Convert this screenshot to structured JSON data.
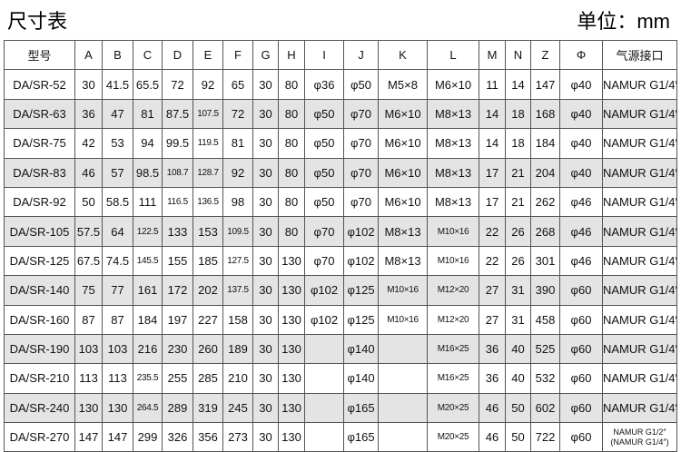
{
  "header": {
    "title": "尺寸表",
    "unit": "单位：mm"
  },
  "table": {
    "header": [
      "型号",
      "A",
      "B",
      "C",
      "D",
      "E",
      "F",
      "G",
      "H",
      "I",
      "J",
      "K",
      "L",
      "M",
      "N",
      "Z",
      "Φ",
      "气源接口"
    ],
    "rows": [
      [
        "DA/SR-52",
        30,
        41.5,
        65.5,
        72,
        92,
        65,
        30,
        80,
        "φ36",
        "φ50",
        "M5×8",
        "M6×10",
        11,
        14,
        147,
        "φ40",
        "NAMUR G1/4″"
      ],
      [
        "DA/SR-63",
        36,
        47,
        81,
        87.5,
        107.5,
        72,
        30,
        80,
        "φ50",
        "φ70",
        "M6×10",
        "M8×13",
        14,
        18,
        168,
        "φ40",
        "NAMUR G1/4″"
      ],
      [
        "DA/SR-75",
        42,
        53,
        94,
        99.5,
        119.5,
        81,
        30,
        80,
        "φ50",
        "φ70",
        "M6×10",
        "M8×13",
        14,
        18,
        184,
        "φ40",
        "NAMUR G1/4″"
      ],
      [
        "DA/SR-83",
        46,
        57,
        98.5,
        108.7,
        128.7,
        92,
        30,
        80,
        "φ50",
        "φ70",
        "M6×10",
        "M8×13",
        17,
        21,
        204,
        "φ40",
        "NAMUR G1/4″"
      ],
      [
        "DA/SR-92",
        50,
        58.5,
        111,
        116.5,
        136.5,
        98,
        30,
        80,
        "φ50",
        "φ70",
        "M6×10",
        "M8×13",
        17,
        21,
        262,
        "φ46",
        "NAMUR G1/4″"
      ],
      [
        "DA/SR-105",
        57.5,
        64,
        122.5,
        133,
        153,
        109.5,
        30,
        80,
        "φ70",
        "φ102",
        "M8×13",
        "M10×16",
        22,
        26,
        268,
        "φ46",
        "NAMUR G1/4″"
      ],
      [
        "DA/SR-125",
        67.5,
        74.5,
        145.5,
        155,
        185,
        127.5,
        30,
        130,
        "φ70",
        "φ102",
        "M8×13",
        "M10×16",
        22,
        26,
        301,
        "φ46",
        "NAMUR G1/4″"
      ],
      [
        "DA/SR-140",
        75,
        77,
        161,
        172,
        202,
        137.5,
        30,
        130,
        "φ102",
        "φ125",
        "M10×16",
        "M12×20",
        27,
        31,
        390,
        "φ60",
        "NAMUR G1/4″"
      ],
      [
        "DA/SR-160",
        87,
        87,
        184,
        197,
        227,
        158,
        30,
        130,
        "φ102",
        "φ125",
        "M10×16",
        "M12×20",
        27,
        31,
        458,
        "φ60",
        "NAMUR G1/4″"
      ],
      [
        "DA/SR-190",
        103,
        103,
        216,
        230,
        260,
        189,
        30,
        130,
        null,
        "φ140",
        null,
        "M16×25",
        36,
        40,
        525,
        "φ60",
        "NAMUR G1/4″"
      ],
      [
        "DA/SR-210",
        113,
        113,
        235.5,
        255,
        285,
        210,
        30,
        130,
        null,
        "φ140",
        null,
        "M16×25",
        36,
        40,
        532,
        "φ60",
        "NAMUR G1/4″"
      ],
      [
        "DA/SR-240",
        130,
        130,
        264.5,
        289,
        319,
        245,
        30,
        130,
        null,
        "φ165",
        null,
        "M20×25",
        46,
        50,
        602,
        "φ60",
        "NAMUR G1/4″"
      ],
      [
        "DA/SR-270",
        147,
        147,
        299,
        326,
        356,
        273,
        30,
        130,
        null,
        "φ165",
        null,
        "M20×25",
        46,
        50,
        722,
        "φ60",
        [
          "NAMUR G1/2″",
          "(NAMUR G1/4″)"
        ]
      ]
    ]
  }
}
